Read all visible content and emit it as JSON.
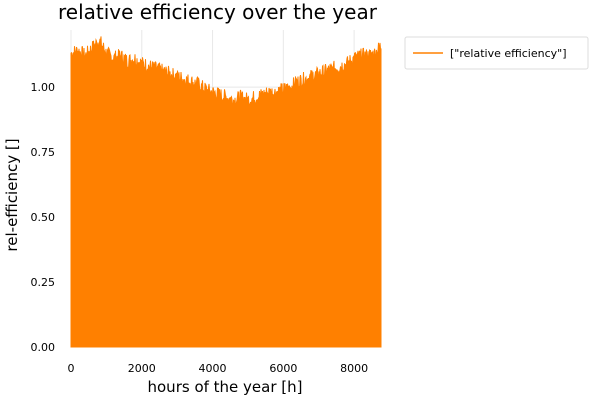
{
  "chart_data": {
    "type": "area",
    "title": "relative efficiency over the year",
    "xlabel": "hours of the year [h]",
    "ylabel": "rel-efficiency []",
    "xlim": [
      0,
      8760
    ],
    "ylim": [
      0,
      1.22
    ],
    "x_ticks": [
      0,
      2000,
      4000,
      6000,
      8000
    ],
    "x_tick_labels": [
      "0",
      "2000",
      "4000",
      "6000",
      "8000"
    ],
    "y_ticks": [
      0,
      0.25,
      0.5,
      0.75,
      1.0
    ],
    "y_tick_labels": [
      "0.00",
      "0.25",
      "0.50",
      "0.75",
      "1.00"
    ],
    "grid": true,
    "legend_position": "top-right",
    "series": [
      {
        "name": "[\"relative efficiency\"]",
        "color": "#ff8000",
        "x": [
          0,
          200,
          400,
          600,
          800,
          1000,
          1200,
          1400,
          1600,
          1800,
          2000,
          2200,
          2400,
          2600,
          2800,
          3000,
          3200,
          3400,
          3600,
          3800,
          4000,
          4200,
          4400,
          4600,
          4800,
          5000,
          5200,
          5400,
          5600,
          5800,
          6000,
          6200,
          6400,
          6600,
          6800,
          7000,
          7200,
          7400,
          7600,
          7800,
          8000,
          8200,
          8400,
          8600,
          8760
        ],
        "y": [
          1.13,
          1.14,
          1.12,
          1.15,
          1.18,
          1.13,
          1.11,
          1.12,
          1.1,
          1.11,
          1.09,
          1.08,
          1.07,
          1.06,
          1.05,
          1.04,
          1.03,
          1.02,
          1.01,
          0.99,
          0.98,
          0.97,
          0.96,
          0.95,
          0.96,
          0.95,
          0.96,
          0.97,
          0.98,
          0.98,
          0.99,
          1.0,
          1.02,
          1.03,
          1.04,
          1.05,
          1.06,
          1.07,
          1.08,
          1.09,
          1.11,
          1.12,
          1.12,
          1.13,
          1.16
        ]
      }
    ]
  }
}
